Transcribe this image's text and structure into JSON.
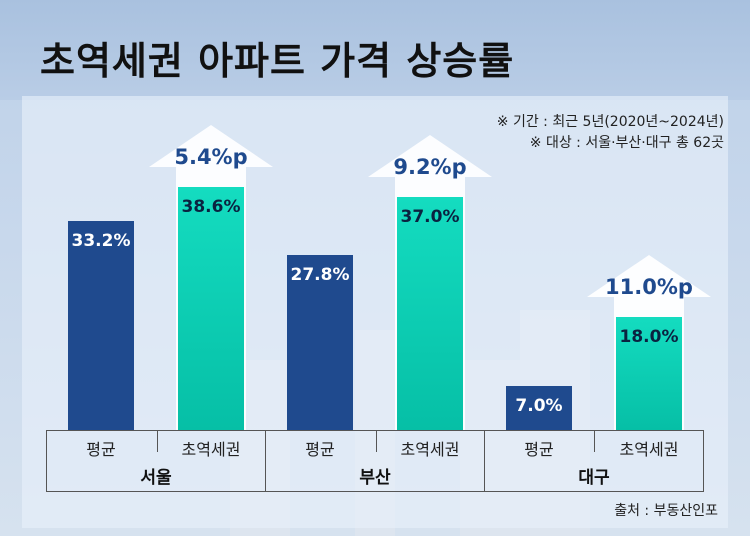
{
  "title": "초역세권 아파트 가격 상승률",
  "notes": {
    "period": "※ 기간 : 최근 5년(2020년~2024년)",
    "target": "※ 대상 : 서울·부산·대구 총 62곳"
  },
  "source": "출처 : 부동산인포",
  "chart_data": {
    "type": "bar",
    "title": "초역세권 아파트 가격 상승률",
    "categories": [
      "서울",
      "부산",
      "대구"
    ],
    "sub_categories": [
      "평균",
      "초역세권"
    ],
    "series": [
      {
        "name": "평균",
        "values": [
          33.2,
          27.8,
          7.0
        ],
        "labels": [
          "33.2%",
          "27.8%",
          "7.0%"
        ]
      },
      {
        "name": "초역세권",
        "values": [
          38.6,
          37.0,
          18.0
        ],
        "labels": [
          "38.6%",
          "37.0%",
          "18.0%"
        ]
      }
    ],
    "differences": [
      5.4,
      9.2,
      11.0
    ],
    "difference_labels": [
      "5.4%p",
      "9.2%p",
      "11.0%p"
    ],
    "colors": {
      "평균": "#1f4a8e",
      "초역세권": "#0fd3b8",
      "arrow": "#ffffff",
      "difference_text": "#1f4a8e"
    },
    "grid": false,
    "legend": "none"
  }
}
